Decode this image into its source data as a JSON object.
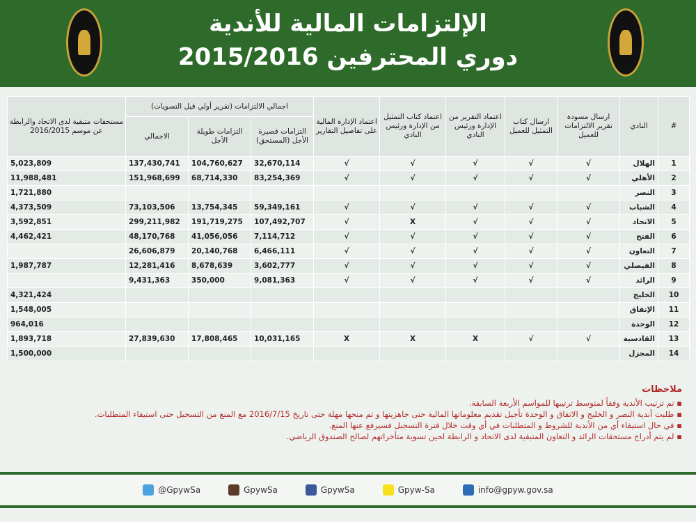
{
  "header": {
    "title": "الإلتزامات المالية للأندية",
    "subtitle": "دوري المحترفين 2015/2016"
  },
  "table": {
    "headers": [
      "#",
      "النادي",
      "ارسال مسودة تقرير الالتزامات للعميل",
      "ارسال كتاب التمثيل للعميل",
      "اعتماد التقرير من الإدارة ورئيس النادي",
      "اعتماد كتاب التمثيل من الإدارة ورئيس النادي",
      "اعتماد الإدارة المالية على تفاصيل التقارير",
      "التزامات قصيرة الأجل (المستحق)",
      "التزامات طويلة الأجل",
      "الاجمالي",
      "مستحقات متبقية لدى الاتحاد والرابطة عن موسم 2016/2015"
    ],
    "group_header": "اجمالي الالتزامات (تقرير أولي قبل التسويات)",
    "rows": [
      [
        1,
        "الهلال",
        "√",
        "√",
        "√",
        "√",
        "√",
        "32,670,114",
        "104,760,627",
        "137,430,741",
        "5,023,809"
      ],
      [
        2,
        "الأهلي",
        "√",
        "√",
        "√",
        "√",
        "√",
        "83,254,369",
        "68,714,330",
        "151,968,699",
        "11,988,481"
      ],
      [
        3,
        "النصر",
        null,
        null,
        null,
        null,
        null,
        null,
        null,
        null,
        "1,721,880"
      ],
      [
        4,
        "الشباب",
        "√",
        "√",
        "√",
        "√",
        "√",
        "59,349,161",
        "13,754,345",
        "73,103,506",
        "4,373,509"
      ],
      [
        5,
        "الاتحاد",
        "√",
        "√",
        "√",
        "X",
        "√",
        "107,492,707",
        "191,719,275",
        "299,211,982",
        "3,592,851"
      ],
      [
        6,
        "الفتح",
        "√",
        "√",
        "√",
        "√",
        "√",
        "7,114,712",
        "41,056,056",
        "48,170,768",
        "4,462,421"
      ],
      [
        7,
        "التعاون",
        "√",
        "√",
        "√",
        "√",
        "√",
        "6,466,111",
        "20,140,768",
        "26,606,879",
        null
      ],
      [
        8,
        "الفيصلي",
        "√",
        "√",
        "√",
        "√",
        "√",
        "3,602,777",
        "8,678,639",
        "12,281,416",
        "1,987,787"
      ],
      [
        9,
        "الرائد",
        "√",
        "√",
        "√",
        "√",
        "√",
        "9,081,363",
        "350,000",
        "9,431,363",
        null
      ],
      [
        10,
        "الخليج",
        null,
        null,
        null,
        null,
        null,
        null,
        null,
        null,
        "4,321,424"
      ],
      [
        11,
        "الإتفاق",
        null,
        null,
        null,
        null,
        null,
        null,
        null,
        null,
        "1,548,005"
      ],
      [
        12,
        "الوحدة",
        null,
        null,
        null,
        null,
        null,
        null,
        null,
        null,
        "964,016"
      ],
      [
        13,
        "القادسية",
        "√",
        "√",
        "X",
        "X",
        "X",
        "10,031,165",
        "17,808,465",
        "27,839,630",
        "1,893,718"
      ],
      [
        14,
        "المجزل",
        null,
        null,
        null,
        null,
        null,
        null,
        null,
        null,
        "1,500,000"
      ]
    ]
  },
  "notes": {
    "title": "ملاحظات",
    "items": [
      "تم ترتيب الأندية وفقاً لمتوسط ترتيبها للمواسم الأربعة السابقة.",
      "طلبت أندية النصر و الخليج و الاتفاق و الوحدة تأجيل تقديم معلوماتها المالية حتى جاهزيتها و تم منحها مهلة حتى تاريخ 2016/7/15 مع المنع من التسجيل حتى استيفاء المتطلبات.",
      "في حال استيفاء أي من الأندية للشروط و المتطلبات في أي وقت خلال فترة التسجيل فسيرفع عنها المنع.",
      "لم يتم أدراج مستحقات الرائد و التعاون المتبقية لدى الاتحاد و الرابطة لحين تسوية متأخراتهم لصالح الصندوق الرياضي."
    ]
  },
  "footer": {
    "contacts": [
      "@GpywSa",
      "GpywSa",
      "GpywSa",
      "Gpyw-Sa",
      "info@gpyw.gov.sa"
    ]
  }
}
